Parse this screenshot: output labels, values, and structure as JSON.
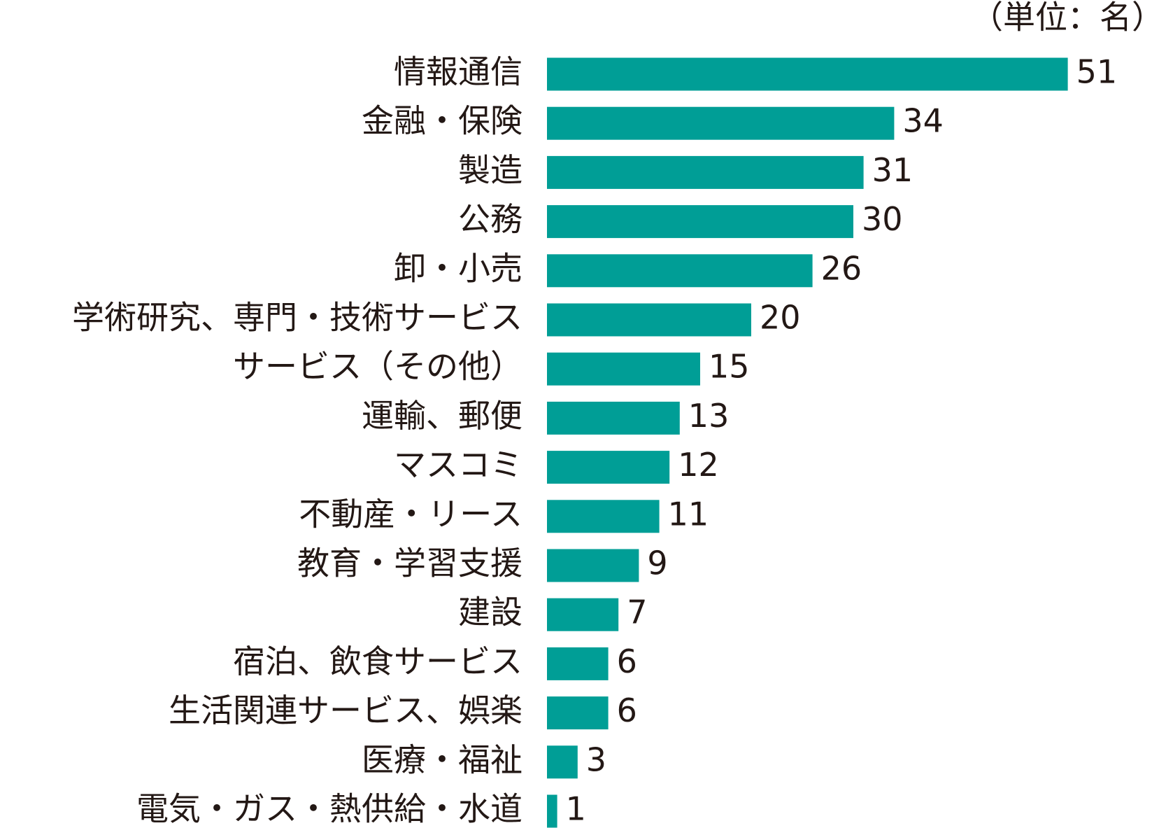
{
  "chart_data": {
    "type": "bar",
    "orientation": "horizontal",
    "unit_label": "（単位：名）",
    "categories": [
      "情報通信",
      "金融・保険",
      "製造",
      "公務",
      "卸・小売",
      "学術研究、専門・技術サービス",
      "サービス（その他）",
      "運輸、郵便",
      "マスコミ",
      "不動産・リース",
      "教育・学習支援",
      "建設",
      "宿泊、飲食サービス",
      "生活関連サービス、娯楽",
      "医療・福祉",
      "電気・ガス・熱供給・水道"
    ],
    "values": [
      51,
      34,
      31,
      30,
      26,
      20,
      15,
      13,
      12,
      11,
      9,
      7,
      6,
      6,
      3,
      1
    ],
    "color": "#009e96"
  }
}
